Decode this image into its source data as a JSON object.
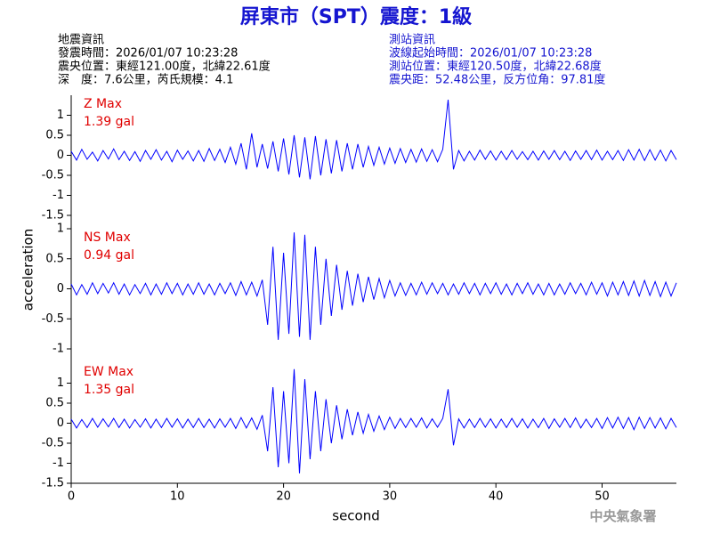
{
  "header": {
    "title": "屏東市（SPT）震度：1級",
    "left": [
      "地震資訊",
      "發震時間：2026/01/07 10:23:28",
      "震央位置：東經121.00度，北緯22.61度",
      "深　度：7.6公里，芮氏規模：4.1"
    ],
    "right": [
      "測站資訊",
      "波線起始時間：2026/01/07 10:23:28",
      "測站位置：東經120.50度，北緯22.68度",
      "震央距：52.48公里，反方位角：97.81度"
    ],
    "footer": "中央氣象署"
  },
  "chart_data": {
    "type": "line",
    "xlabel": "second",
    "ylabel": "acceleration",
    "xlim": [
      0,
      57
    ],
    "xticks": [
      0,
      10,
      20,
      30,
      40,
      50
    ],
    "x": [
      0,
      0.5,
      1,
      1.5,
      2,
      2.5,
      3,
      3.5,
      4,
      4.5,
      5,
      5.5,
      6,
      6.5,
      7,
      7.5,
      8,
      8.5,
      9,
      9.5,
      10,
      10.5,
      11,
      11.5,
      12,
      12.5,
      13,
      13.5,
      14,
      14.5,
      15,
      15.5,
      16,
      16.5,
      17,
      17.5,
      18,
      18.5,
      19,
      19.5,
      20,
      20.5,
      21,
      21.5,
      22,
      22.5,
      23,
      23.5,
      24,
      24.5,
      25,
      25.5,
      26,
      26.5,
      27,
      27.5,
      28,
      28.5,
      29,
      29.5,
      30,
      30.5,
      31,
      31.5,
      32,
      32.5,
      33,
      33.5,
      34,
      34.5,
      35,
      35.5,
      36,
      36.5,
      37,
      37.5,
      38,
      38.5,
      39,
      39.5,
      40,
      40.5,
      41,
      41.5,
      42,
      42.5,
      43,
      43.5,
      44,
      44.5,
      45,
      45.5,
      46,
      46.5,
      47,
      47.5,
      48,
      48.5,
      49,
      49.5,
      50,
      50.5,
      51,
      51.5,
      52,
      52.5,
      53,
      53.5,
      54,
      54.5,
      55,
      55.5,
      56,
      56.5,
      57
    ],
    "panels": [
      {
        "name": "Z Max",
        "annotation": "1.39 gal",
        "color": "#0000ff",
        "ylim": [
          -1.5,
          1.5
        ],
        "yticks": [
          -1.5,
          -1,
          -0.5,
          0,
          0.5,
          1
        ],
        "values": [
          0.1,
          -0.12,
          0.15,
          -0.1,
          0.08,
          -0.14,
          0.12,
          -0.09,
          0.16,
          -0.11,
          0.1,
          -0.13,
          0.09,
          -0.15,
          0.12,
          -0.1,
          0.14,
          -0.12,
          0.1,
          -0.16,
          0.13,
          -0.1,
          0.11,
          -0.14,
          0.12,
          -0.15,
          0.17,
          -0.13,
          0.15,
          -0.18,
          0.2,
          -0.22,
          0.3,
          -0.35,
          0.55,
          -0.3,
          0.28,
          -0.33,
          0.35,
          -0.4,
          0.42,
          -0.48,
          0.5,
          -0.55,
          0.45,
          -0.6,
          0.48,
          -0.5,
          0.4,
          -0.45,
          0.38,
          -0.4,
          0.3,
          -0.35,
          0.28,
          -0.3,
          0.22,
          -0.25,
          0.2,
          -0.22,
          0.18,
          -0.2,
          0.17,
          -0.18,
          0.15,
          -0.17,
          0.16,
          -0.15,
          0.14,
          -0.16,
          0.15,
          1.39,
          -0.35,
          0.12,
          -0.14,
          0.1,
          -0.12,
          0.13,
          -0.1,
          0.11,
          -0.12,
          0.1,
          -0.11,
          0.12,
          -0.1,
          0.09,
          -0.11,
          0.1,
          -0.12,
          0.11,
          -0.1,
          0.12,
          -0.11,
          0.1,
          -0.13,
          0.11,
          -0.1,
          0.12,
          -0.11,
          0.13,
          -0.12,
          0.1,
          -0.11,
          0.12,
          -0.13,
          0.14,
          -0.12,
          0.15,
          -0.13,
          0.14,
          -0.12,
          0.13,
          -0.14,
          0.12,
          -0.11
        ]
      },
      {
        "name": "NS Max",
        "annotation": "0.94 gal",
        "color": "#0000ff",
        "ylim": [
          -1,
          1
        ],
        "yticks": [
          -1,
          -0.5,
          0,
          0.5,
          1
        ],
        "values": [
          0.08,
          -0.1,
          0.07,
          -0.09,
          0.1,
          -0.08,
          0.09,
          -0.07,
          0.1,
          -0.09,
          0.08,
          -0.1,
          0.07,
          -0.08,
          0.09,
          -0.1,
          0.08,
          -0.09,
          0.1,
          -0.08,
          0.09,
          -0.1,
          0.08,
          -0.09,
          0.1,
          -0.09,
          0.08,
          -0.1,
          0.09,
          -0.08,
          0.1,
          -0.11,
          0.12,
          -0.1,
          0.11,
          -0.12,
          0.15,
          -0.6,
          0.7,
          -0.85,
          0.6,
          -0.75,
          0.94,
          -0.8,
          0.9,
          -0.85,
          0.7,
          -0.6,
          0.5,
          -0.45,
          0.4,
          -0.35,
          0.3,
          -0.28,
          0.25,
          -0.22,
          0.2,
          -0.18,
          0.17,
          -0.15,
          0.14,
          -0.12,
          0.1,
          -0.11,
          0.09,
          -0.1,
          0.11,
          -0.09,
          0.1,
          -0.08,
          0.09,
          -0.1,
          0.08,
          -0.09,
          0.1,
          -0.08,
          0.09,
          -0.1,
          0.09,
          -0.08,
          0.1,
          -0.09,
          0.08,
          -0.1,
          0.09,
          -0.08,
          0.1,
          -0.09,
          0.08,
          -0.1,
          0.09,
          -0.1,
          0.08,
          -0.09,
          0.1,
          -0.08,
          0.09,
          -0.1,
          0.11,
          -0.09,
          0.1,
          -0.12,
          0.11,
          -0.1,
          0.12,
          -0.11,
          0.13,
          -0.12,
          0.14,
          -0.11,
          0.12,
          -0.13,
          0.11,
          -0.12,
          0.1
        ]
      },
      {
        "name": "EW Max",
        "annotation": "1.35 gal",
        "color": "#0000ff",
        "ylim": [
          -1.5,
          1.5
        ],
        "yticks": [
          -1.5,
          -1,
          -0.5,
          0,
          0.5,
          1
        ],
        "values": [
          0.1,
          -0.12,
          0.09,
          -0.11,
          0.12,
          -0.1,
          0.11,
          -0.09,
          0.12,
          -0.11,
          0.1,
          -0.12,
          0.09,
          -0.1,
          0.11,
          -0.12,
          0.1,
          -0.11,
          0.12,
          -0.1,
          0.11,
          -0.12,
          0.1,
          -0.11,
          0.12,
          -0.11,
          0.1,
          -0.12,
          0.11,
          -0.1,
          0.12,
          -0.13,
          0.14,
          -0.12,
          0.13,
          -0.15,
          0.2,
          -0.7,
          0.9,
          -1.1,
          0.8,
          -1.0,
          1.35,
          -1.25,
          1.1,
          -0.9,
          0.8,
          -0.7,
          0.6,
          -0.5,
          0.45,
          -0.4,
          0.35,
          -0.3,
          0.28,
          -0.25,
          0.22,
          -0.2,
          0.18,
          -0.16,
          0.15,
          -0.13,
          0.12,
          -0.11,
          0.12,
          -0.1,
          0.13,
          -0.12,
          0.11,
          -0.1,
          0.12,
          0.85,
          -0.55,
          0.11,
          -0.12,
          0.1,
          -0.11,
          0.12,
          -0.1,
          0.11,
          -0.12,
          0.1,
          -0.11,
          0.12,
          -0.1,
          0.11,
          -0.12,
          0.1,
          -0.11,
          0.12,
          -0.13,
          0.11,
          -0.1,
          0.12,
          -0.11,
          0.13,
          -0.12,
          0.1,
          -0.11,
          0.12,
          -0.13,
          0.14,
          -0.12,
          0.15,
          -0.13,
          0.14,
          -0.16,
          0.15,
          -0.13,
          0.14,
          -0.12,
          0.13,
          -0.14,
          0.12,
          -0.11
        ]
      }
    ]
  }
}
